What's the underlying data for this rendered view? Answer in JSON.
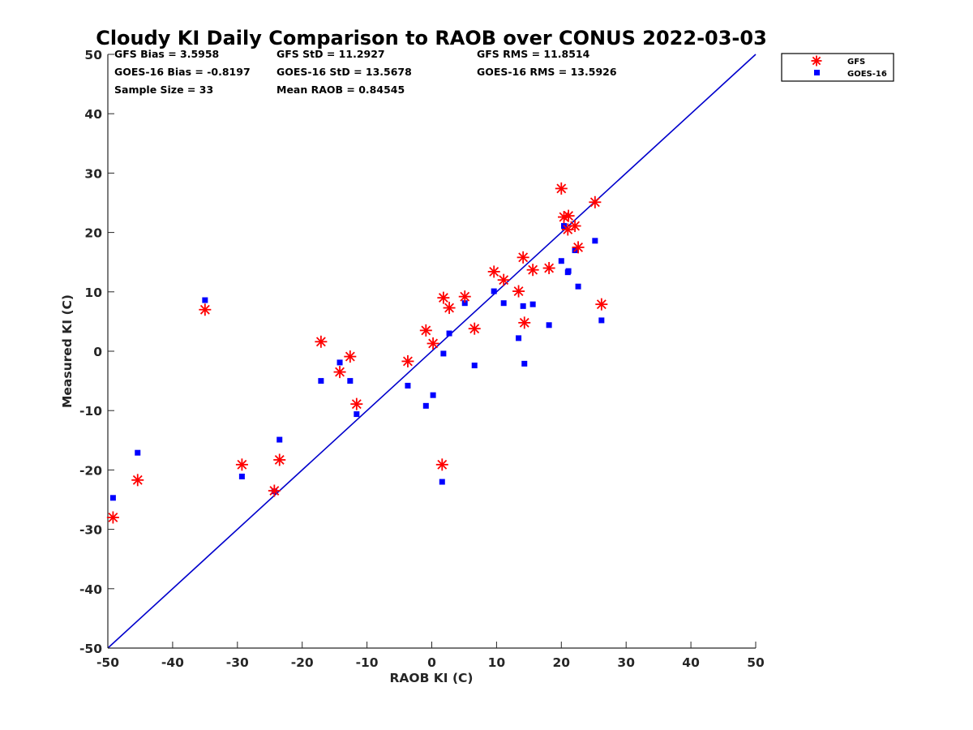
{
  "colors": {
    "gfs": "#ff0000",
    "goes": "#0000ff",
    "diagonal": "#0000cc",
    "axis": "#262626"
  },
  "stats": {
    "gfs_bias": "GFS Bias = 3.5958",
    "gfs_std": "GFS StD = 11.2927",
    "gfs_rms": "GFS RMS = 11.8514",
    "goes_bias": "GOES-16 Bias = -0.8197",
    "goes_std": "GOES-16 StD = 13.5678",
    "goes_rms": "GOES-16 RMS = 13.5926",
    "sample_size": "Sample Size = 33",
    "mean_raob": "Mean RAOB = 0.84545"
  },
  "chart_data": {
    "type": "scatter",
    "title": "Cloudy KI Daily Comparison to RAOB over CONUS 2022-03-03",
    "xlabel": "RAOB KI (C)",
    "ylabel": "Measured KI (C)",
    "xlim": [
      -50,
      50
    ],
    "ylim": [
      -50,
      50
    ],
    "xticks": [
      -50,
      -40,
      -30,
      -20,
      -10,
      0,
      10,
      20,
      30,
      40,
      50
    ],
    "yticks": [
      -50,
      -40,
      -30,
      -20,
      -10,
      0,
      10,
      20,
      30,
      40,
      50
    ],
    "xtick_labels": [
      "-50",
      "-40",
      "-30",
      "-20",
      "-10",
      "0",
      "10",
      "20",
      "30",
      "40",
      "50"
    ],
    "ytick_labels": [
      "-50",
      "-40",
      "-30",
      "-20",
      "-10",
      "0",
      "10",
      "20",
      "30",
      "40",
      "50"
    ],
    "grid": false,
    "legend_position": "top-right, outside plot",
    "reference_line": "y = x",
    "series": [
      {
        "name": "GFS",
        "marker": "asterisk",
        "color": "#ff0000",
        "points": [
          [
            -49.2,
            -28.0
          ],
          [
            -45.4,
            -21.7
          ],
          [
            -35.0,
            7.0
          ],
          [
            -29.3,
            -19.1
          ],
          [
            -24.3,
            -23.5
          ],
          [
            -23.5,
            -18.3
          ],
          [
            -17.1,
            1.6
          ],
          [
            -14.2,
            -3.5
          ],
          [
            -12.6,
            -0.9
          ],
          [
            -11.6,
            -8.9
          ],
          [
            -3.7,
            -1.7
          ],
          [
            -0.9,
            3.5
          ],
          [
            0.2,
            1.3
          ],
          [
            1.6,
            -19.1
          ],
          [
            1.8,
            9.0
          ],
          [
            2.7,
            7.3
          ],
          [
            5.1,
            9.2
          ],
          [
            6.6,
            3.8
          ],
          [
            9.6,
            13.4
          ],
          [
            11.1,
            12.0
          ],
          [
            13.4,
            10.1
          ],
          [
            14.1,
            15.8
          ],
          [
            14.3,
            4.8
          ],
          [
            15.6,
            13.7
          ],
          [
            18.1,
            14.0
          ],
          [
            20.0,
            27.4
          ],
          [
            20.4,
            22.6
          ],
          [
            21.0,
            20.5
          ],
          [
            21.1,
            22.8
          ],
          [
            22.1,
            21.1
          ],
          [
            22.6,
            17.5
          ],
          [
            25.2,
            25.1
          ],
          [
            26.2,
            7.9
          ]
        ]
      },
      {
        "name": "GOES-16",
        "marker": "square",
        "color": "#0000ff",
        "points": [
          [
            -49.2,
            -24.7
          ],
          [
            -45.4,
            -17.1
          ],
          [
            -35.0,
            8.6
          ],
          [
            -29.3,
            -21.1
          ],
          [
            -24.3,
            -23.6
          ],
          [
            -23.5,
            -14.9
          ],
          [
            -17.1,
            -5.0
          ],
          [
            -14.2,
            -1.9
          ],
          [
            -12.6,
            -5.0
          ],
          [
            -11.6,
            -10.6
          ],
          [
            -3.7,
            -5.8
          ],
          [
            -0.9,
            -9.2
          ],
          [
            0.2,
            -7.4
          ],
          [
            1.6,
            -22.0
          ],
          [
            1.8,
            -0.4
          ],
          [
            2.7,
            3.0
          ],
          [
            5.1,
            8.1
          ],
          [
            6.6,
            -2.4
          ],
          [
            9.6,
            10.1
          ],
          [
            11.1,
            8.1
          ],
          [
            13.4,
            2.2
          ],
          [
            14.1,
            7.6
          ],
          [
            14.3,
            -2.1
          ],
          [
            15.6,
            7.9
          ],
          [
            18.1,
            4.4
          ],
          [
            20.0,
            15.2
          ],
          [
            20.4,
            21.1
          ],
          [
            21.0,
            13.3
          ],
          [
            21.1,
            13.5
          ],
          [
            22.1,
            17.0
          ],
          [
            22.6,
            10.9
          ],
          [
            25.2,
            18.6
          ],
          [
            26.2,
            5.2
          ]
        ]
      }
    ]
  }
}
